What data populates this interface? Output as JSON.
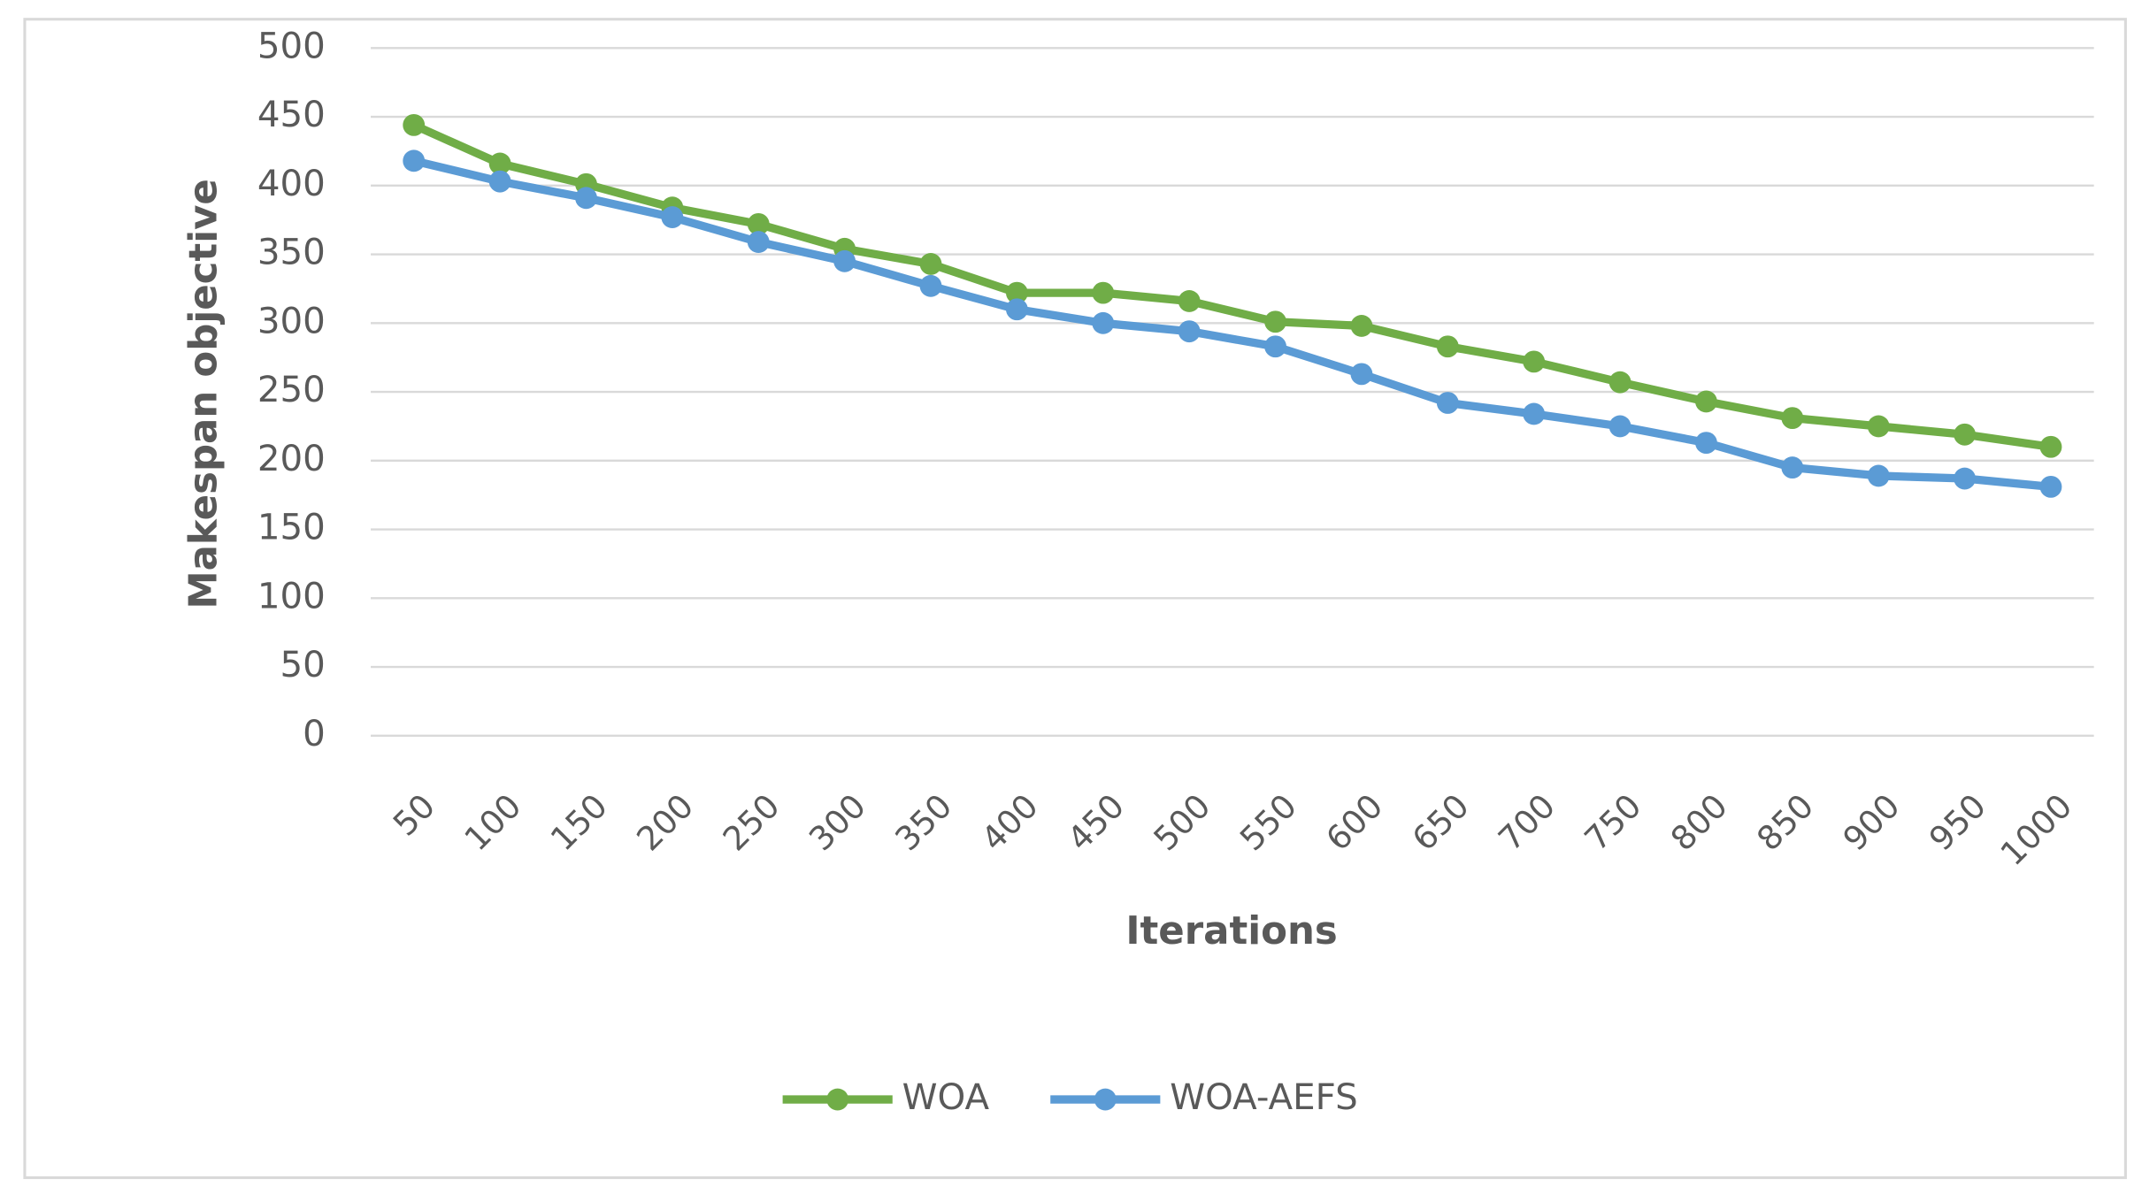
{
  "chart_data": {
    "type": "line",
    "x_label": "Iterations",
    "y_label": "Makespan  objective",
    "categories": [
      "50",
      "100",
      "150",
      "200",
      "250",
      "300",
      "350",
      "400",
      "450",
      "500",
      "550",
      "600",
      "650",
      "700",
      "750",
      "800",
      "850",
      "900",
      "950",
      "1000"
    ],
    "series": [
      {
        "name": "WOA",
        "color": "#70ad47",
        "values": [
          444,
          416,
          401,
          384,
          372,
          354,
          343,
          322,
          322,
          316,
          301,
          298,
          283,
          272,
          257,
          243,
          231,
          225,
          219,
          210
        ]
      },
      {
        "name": "WOA-AEFS",
        "color": "#5b9bd5",
        "values": [
          418,
          403,
          391,
          377,
          359,
          345,
          327,
          310,
          300,
          294,
          283,
          263,
          242,
          234,
          225,
          213,
          195,
          189,
          187,
          181
        ]
      }
    ],
    "ylim": [
      0,
      500
    ],
    "yticks": [
      0,
      50,
      100,
      150,
      200,
      250,
      300,
      350,
      400,
      450,
      500
    ],
    "grid": true,
    "legend": "bottom"
  }
}
